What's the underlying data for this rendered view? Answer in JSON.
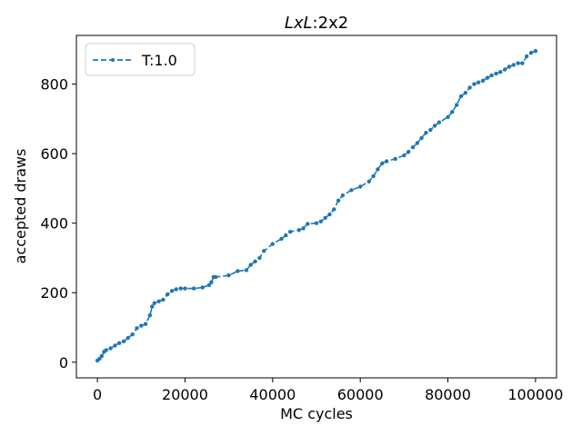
{
  "chart_data": {
    "type": "line",
    "title_italic": "LxL",
    "title_rest": ":2x2",
    "xlabel": "MC cycles",
    "ylabel": "accepted draws",
    "xlim": [
      -4800,
      104800
    ],
    "ylim": [
      -45,
      940
    ],
    "xticks": [
      0,
      20000,
      40000,
      60000,
      80000,
      100000
    ],
    "yticks": [
      0,
      200,
      400,
      600,
      800
    ],
    "legend_position": "upper-left",
    "line_color": "#1f77b4",
    "series": [
      {
        "name": "T:1.0",
        "linestyle": "dashed",
        "marker": "point",
        "x": [
          0,
          500,
          1000,
          1500,
          2000,
          3000,
          4000,
          5000,
          6000,
          7000,
          8000,
          9000,
          10000,
          11000,
          12000,
          12500,
          13000,
          14000,
          15000,
          16000,
          17000,
          18000,
          19000,
          20000,
          22000,
          24000,
          25500,
          26000,
          26500,
          27000,
          30000,
          32000,
          34000,
          35000,
          36000,
          37000,
          38000,
          40000,
          42000,
          43000,
          44000,
          46000,
          47000,
          48000,
          50000,
          51000,
          52000,
          53000,
          54000,
          55000,
          56000,
          58000,
          60000,
          62000,
          63000,
          64000,
          65000,
          66000,
          68000,
          70000,
          71000,
          72000,
          73000,
          74000,
          75000,
          76000,
          77000,
          78000,
          80000,
          81000,
          82000,
          83000,
          84000,
          85000,
          86000,
          87000,
          88000,
          89000,
          90000,
          91000,
          92000,
          93000,
          94000,
          95000,
          96000,
          97000,
          98000,
          99000,
          100000
        ],
        "y": [
          5,
          10,
          18,
          30,
          35,
          40,
          48,
          55,
          60,
          70,
          80,
          98,
          105,
          110,
          135,
          160,
          170,
          175,
          180,
          195,
          205,
          210,
          212,
          212,
          212,
          215,
          222,
          230,
          245,
          245,
          250,
          262,
          265,
          280,
          290,
          300,
          320,
          340,
          355,
          365,
          375,
          380,
          385,
          398,
          400,
          405,
          415,
          425,
          440,
          465,
          480,
          495,
          505,
          520,
          535,
          555,
          572,
          578,
          585,
          595,
          605,
          618,
          630,
          645,
          660,
          668,
          680,
          690,
          705,
          720,
          740,
          765,
          775,
          790,
          800,
          805,
          810,
          818,
          825,
          830,
          835,
          842,
          850,
          855,
          860,
          860,
          880,
          890,
          895
        ]
      }
    ]
  }
}
